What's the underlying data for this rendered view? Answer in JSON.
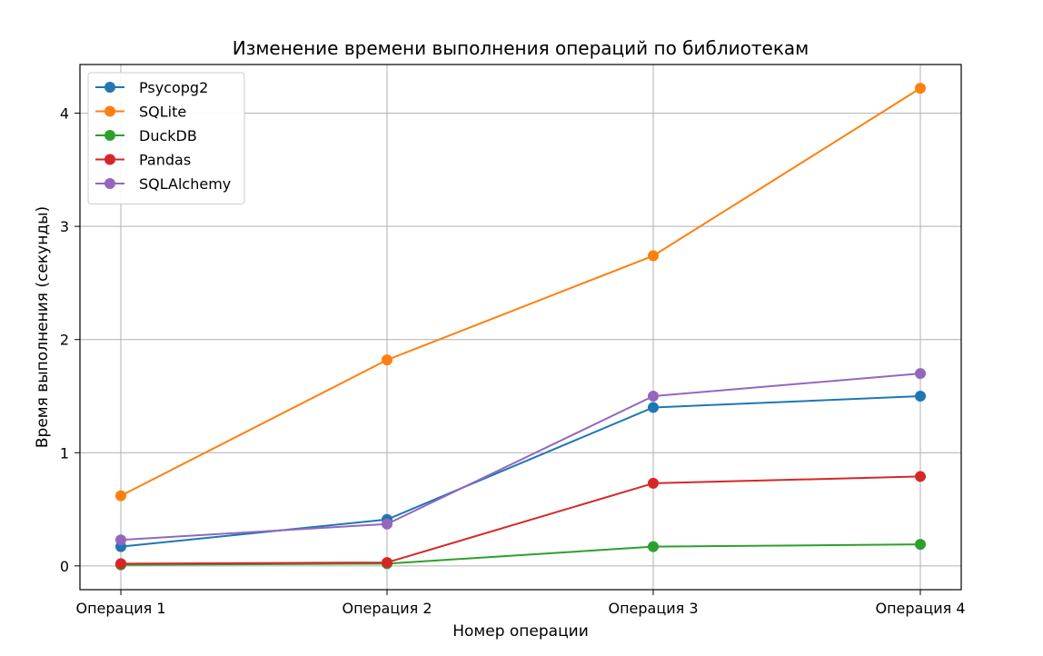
{
  "chart_data": {
    "type": "line",
    "title": "Изменение времени выполнения операций по библиотекам",
    "xlabel": "Номер операции",
    "ylabel": "Время выполнения (секунды)",
    "categories": [
      "Операция 1",
      "Операция 2",
      "Операция 3",
      "Операция 4"
    ],
    "ylim": [
      -0.21,
      4.43
    ],
    "yticks": [
      0,
      1,
      2,
      3,
      4
    ],
    "ytick_labels": [
      "0",
      "1",
      "2",
      "3",
      "4"
    ],
    "grid": true,
    "legend_position": "top-left",
    "series": [
      {
        "name": "Psycopg2",
        "color": "#1f77b4",
        "marker": "circle",
        "values": [
          0.17,
          0.41,
          1.4,
          1.5
        ]
      },
      {
        "name": "SQLite",
        "color": "#ff7f0e",
        "marker": "circle",
        "values": [
          0.62,
          1.82,
          2.74,
          4.22
        ]
      },
      {
        "name": "DuckDB",
        "color": "#2ca02c",
        "marker": "circle",
        "values": [
          0.01,
          0.02,
          0.17,
          0.19
        ]
      },
      {
        "name": "Pandas",
        "color": "#d62728",
        "marker": "circle",
        "values": [
          0.02,
          0.03,
          0.73,
          0.79
        ]
      },
      {
        "name": "SQLAlchemy",
        "color": "#9467bd",
        "marker": "circle",
        "values": [
          0.23,
          0.37,
          1.5,
          1.7
        ]
      }
    ]
  }
}
